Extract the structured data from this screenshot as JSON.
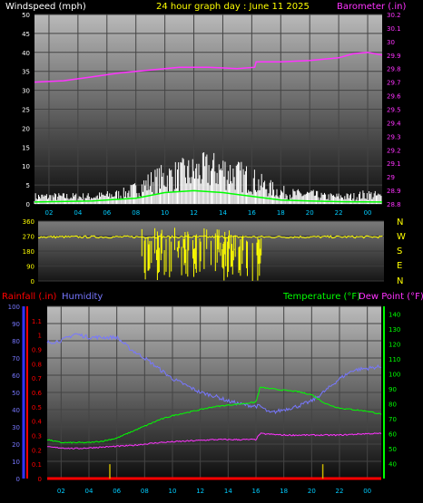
{
  "header": {
    "windspeed_label": "Windspeed (mph)",
    "title": "24 hour graph day : June 11 2025",
    "barometer_label": "Barometer (.in)"
  },
  "lower_header": {
    "rainfall_label": "Rainfall (.in)",
    "humidity_label": "Humidity",
    "temperature_label": "Temperature (°F)",
    "dewpoint_label": "Dew Point (°F)"
  },
  "compass_labels": [
    "N",
    "W",
    "S",
    "E",
    "N"
  ],
  "colors": {
    "wind": "#ffffff",
    "gust": "#00ff00",
    "barometer": "#ff33ff",
    "direction": "#ffff00",
    "rain": "#ff0000",
    "humidity": "#7777ff",
    "temperature": "#00ff00",
    "dewpoint": "#ff33ff",
    "rain_bar": "#c8b400",
    "x_ticks": "#00ccff",
    "title": "#ffff00"
  },
  "chart_data": [
    {
      "type": "line",
      "name": "wind_barometer",
      "xlim": [
        1,
        25
      ],
      "x_ticks": [
        "02",
        "04",
        "06",
        "08",
        "10",
        "12",
        "14",
        "16",
        "18",
        "20",
        "22",
        "00"
      ],
      "y_left": {
        "label": "Windspeed (mph)",
        "ylim": [
          0,
          50
        ],
        "ticks": [
          0,
          5,
          10,
          15,
          20,
          25,
          30,
          35,
          40,
          45,
          50
        ]
      },
      "y_right": {
        "label": "Barometer (.in)",
        "ylim": [
          28.8,
          30.2
        ],
        "ticks": [
          "28.8",
          "28.9",
          "29",
          "29.1",
          "29.2",
          "29.3",
          "29.4",
          "29.5",
          "29.6",
          "29.7",
          "29.8",
          "29.9",
          "30",
          "30.1",
          "30.2"
        ]
      },
      "barometer": {
        "x": [
          1,
          3,
          5,
          7,
          9,
          11,
          13,
          15,
          16.2,
          16.3,
          18,
          20,
          22,
          23,
          24,
          25
        ],
        "y": [
          29.7,
          29.71,
          29.74,
          29.77,
          29.79,
          29.81,
          29.81,
          29.8,
          29.81,
          29.85,
          29.85,
          29.86,
          29.88,
          29.91,
          29.92,
          29.9
        ]
      },
      "wind_envelope": {
        "x": [
          1,
          3,
          5,
          7,
          8,
          9,
          10,
          11,
          12,
          13,
          14,
          15,
          16,
          17,
          18,
          19,
          20,
          21,
          22,
          23,
          24,
          25
        ],
        "y": [
          3,
          3,
          3,
          4,
          6,
          9,
          11,
          12,
          13,
          14,
          14,
          12,
          10,
          7,
          5,
          4,
          4,
          3,
          3,
          3,
          4,
          3
        ]
      },
      "wind_average": {
        "x": [
          1,
          5,
          8,
          10,
          12,
          14,
          16,
          18,
          20,
          22,
          25
        ],
        "y": [
          0.5,
          0.8,
          1.5,
          3,
          3.5,
          3,
          2,
          1,
          0.8,
          0.6,
          0.5
        ]
      }
    },
    {
      "type": "line",
      "name": "wind_direction",
      "xlim": [
        1,
        25
      ],
      "ylim": [
        0,
        360
      ],
      "y_ticks": [
        0,
        90,
        180,
        270,
        360
      ],
      "baseline": {
        "x": [
          1,
          25
        ],
        "y": [
          265,
          265
        ]
      },
      "scatter_window": {
        "x": [
          8.2,
          16.8
        ],
        "y_min": 0,
        "y_max": 320
      }
    },
    {
      "type": "line",
      "name": "temperature_humidity",
      "xlim": [
        1,
        25
      ],
      "y_rain": {
        "label": "Rainfall (.in)",
        "ylim": [
          0,
          1.2
        ],
        "ticks": [
          "0",
          "0.1",
          "0.2",
          "0.3",
          "0.4",
          "0.5",
          "0.6",
          "0.7",
          "0.8",
          "0.9",
          "1",
          "1.1"
        ]
      },
      "y_humidity": {
        "label": "Humidity",
        "ylim": [
          0,
          100
        ],
        "ticks": [
          0,
          10,
          20,
          30,
          40,
          50,
          60,
          70,
          80,
          90,
          100
        ]
      },
      "y_temp": {
        "label": "Temperature (°F)",
        "ylim": [
          30,
          145
        ],
        "ticks": [
          40,
          50,
          60,
          70,
          80,
          90,
          100,
          110,
          120,
          130,
          140
        ]
      },
      "humidity": {
        "x": [
          1,
          2,
          3,
          4,
          5,
          6,
          7,
          8,
          9,
          10,
          11,
          12,
          13,
          14,
          15,
          16,
          16.3,
          17,
          18,
          19,
          20,
          21,
          22,
          23,
          24,
          25
        ],
        "y": [
          79,
          80,
          84,
          82,
          82,
          82,
          75,
          70,
          64,
          58,
          54,
          50,
          48,
          45,
          43,
          42,
          42,
          38,
          40,
          42,
          45,
          51,
          58,
          63,
          64,
          65
        ]
      },
      "temperature": {
        "x": [
          1,
          2,
          3,
          4,
          5,
          6,
          7,
          8,
          9,
          10,
          11,
          12,
          13,
          14,
          15,
          16,
          16.3,
          17,
          18,
          19,
          20,
          21,
          22,
          23,
          24,
          25
        ],
        "y": [
          56,
          54,
          54,
          54,
          55,
          57,
          61,
          65,
          69,
          72,
          74,
          76,
          78,
          79,
          80,
          81,
          91,
          90,
          89,
          88,
          86,
          80,
          77,
          76,
          75,
          73
        ]
      },
      "dewpoint": {
        "x": [
          1,
          3,
          5,
          7,
          9,
          11,
          13,
          15,
          16,
          16.3,
          18,
          20,
          22,
          24,
          25
        ],
        "y": [
          51,
          50,
          51,
          52,
          54,
          55,
          56,
          56,
          56,
          60,
          59,
          59,
          59,
          60,
          60
        ]
      },
      "rainfall": {
        "x": [
          1,
          25
        ],
        "y": [
          0,
          0
        ]
      },
      "rain_bars": {
        "x": [
          5.5,
          20.8
        ],
        "y": [
          0.1,
          0.1
        ]
      }
    }
  ]
}
